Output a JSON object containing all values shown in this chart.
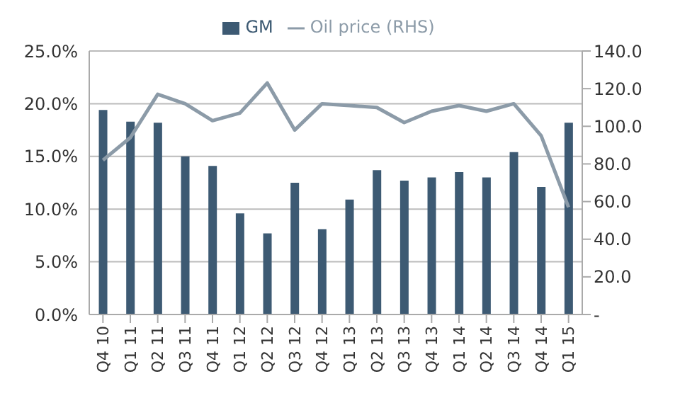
{
  "chart_data": {
    "type": "bar",
    "categories": [
      "Q4 10",
      "Q1 11",
      "Q2 11",
      "Q3 11",
      "Q4 11",
      "Q1 12",
      "Q2 12",
      "Q3 12",
      "Q4 12",
      "Q1 13",
      "Q2 13",
      "Q3 13",
      "Q4 13",
      "Q1 14",
      "Q2 14",
      "Q3 14",
      "Q4 14",
      "Q1 15"
    ],
    "series": [
      {
        "name": "GM",
        "color": "#3d5a73",
        "values": [
          19.4,
          18.3,
          18.2,
          15.0,
          14.1,
          9.6,
          7.7,
          12.5,
          8.1,
          10.9,
          13.7,
          12.7,
          13.0,
          13.5,
          13.0,
          15.4,
          12.1,
          18.2
        ]
      },
      {
        "name": "Oil price (RHS)",
        "type": "line",
        "axis": "y2",
        "color": "#8c9ba8",
        "values": [
          82,
          94,
          117,
          112,
          103,
          107,
          123,
          98,
          112,
          111,
          110,
          102,
          108,
          111,
          108,
          112,
          95,
          57
        ]
      }
    ],
    "ylim": [
      0,
      25
    ],
    "yticks": [
      {
        "value": 0,
        "label": "0.0%"
      },
      {
        "value": 5,
        "label": "5.0%"
      },
      {
        "value": 10,
        "label": "10.0%"
      },
      {
        "value": 15,
        "label": "15.0%"
      },
      {
        "value": 20,
        "label": "20.0%"
      },
      {
        "value": 25,
        "label": "25.0%"
      }
    ],
    "y2lim": [
      0,
      140
    ],
    "y2ticks": [
      {
        "value": 0,
        "label": "-"
      },
      {
        "value": 20,
        "label": "20.0"
      },
      {
        "value": 40,
        "label": "40.0"
      },
      {
        "value": 60,
        "label": "60.0"
      },
      {
        "value": 80,
        "label": "80.0"
      },
      {
        "value": 100,
        "label": "100.0"
      },
      {
        "value": 120,
        "label": "120.0"
      },
      {
        "value": 140,
        "label": "140.0"
      }
    ],
    "grid": "y",
    "legend": "top",
    "marker": "none"
  }
}
